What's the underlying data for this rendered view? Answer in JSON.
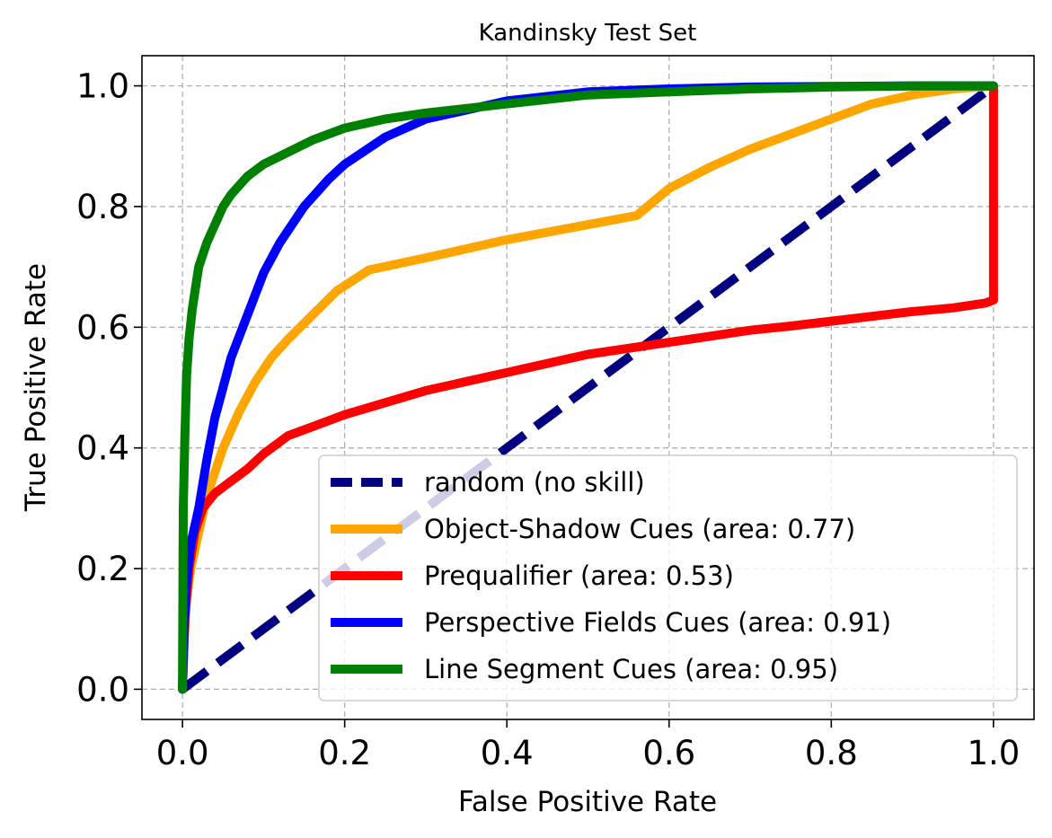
{
  "chart_data": {
    "type": "line",
    "title": "Kandinsky Test Set",
    "xlabel": "False Positive Rate",
    "ylabel": "True Positive Rate",
    "xlim": [
      -0.05,
      1.05
    ],
    "ylim": [
      -0.05,
      1.05
    ],
    "xticks": [
      0.0,
      0.2,
      0.4,
      0.6,
      0.8,
      1.0
    ],
    "yticks": [
      0.0,
      0.2,
      0.4,
      0.6,
      0.8,
      1.0
    ],
    "xtick_labels": [
      "0.0",
      "0.2",
      "0.4",
      "0.6",
      "0.8",
      "1.0"
    ],
    "ytick_labels": [
      "0.0",
      "0.2",
      "0.4",
      "0.6",
      "0.8",
      "1.0"
    ],
    "grid": true,
    "legend_position": "lower-right",
    "series": [
      {
        "name": "random (no skill)",
        "color": "#000080",
        "style": "dashed",
        "x": [
          0,
          1
        ],
        "y": [
          0,
          1
        ]
      },
      {
        "name": "Object-Shadow Cues (area: 0.77)",
        "color": "#FFA500",
        "style": "solid",
        "x": [
          0,
          0.002,
          0.005,
          0.01,
          0.02,
          0.03,
          0.04,
          0.05,
          0.07,
          0.09,
          0.11,
          0.13,
          0.16,
          0.19,
          0.23,
          0.3,
          0.4,
          0.5,
          0.56,
          0.6,
          0.65,
          0.7,
          0.75,
          0.8,
          0.85,
          0.9,
          0.95,
          1.0
        ],
        "y": [
          0,
          0.08,
          0.15,
          0.2,
          0.26,
          0.32,
          0.36,
          0.4,
          0.46,
          0.51,
          0.55,
          0.58,
          0.62,
          0.66,
          0.695,
          0.715,
          0.745,
          0.77,
          0.785,
          0.83,
          0.865,
          0.895,
          0.92,
          0.945,
          0.97,
          0.985,
          0.995,
          1.0
        ]
      },
      {
        "name": "Prequalifier (area: 0.53)",
        "color": "#FF0000",
        "style": "solid",
        "x": [
          0,
          0.003,
          0.008,
          0.015,
          0.025,
          0.04,
          0.06,
          0.08,
          0.1,
          0.13,
          0.16,
          0.2,
          0.25,
          0.3,
          0.35,
          0.4,
          0.45,
          0.5,
          0.55,
          0.6,
          0.65,
          0.7,
          0.75,
          0.8,
          0.85,
          0.9,
          0.95,
          0.99,
          1.0,
          1.0
        ],
        "y": [
          0,
          0.12,
          0.2,
          0.26,
          0.3,
          0.325,
          0.345,
          0.365,
          0.39,
          0.42,
          0.435,
          0.455,
          0.475,
          0.495,
          0.51,
          0.525,
          0.54,
          0.555,
          0.565,
          0.575,
          0.585,
          0.595,
          0.602,
          0.61,
          0.618,
          0.626,
          0.632,
          0.64,
          0.645,
          1.0
        ]
      },
      {
        "name": "Perspective Fields Cues (area: 0.91)",
        "color": "#0000FF",
        "style": "solid",
        "x": [
          0,
          0.002,
          0.005,
          0.01,
          0.02,
          0.03,
          0.04,
          0.05,
          0.06,
          0.08,
          0.1,
          0.12,
          0.15,
          0.18,
          0.2,
          0.25,
          0.3,
          0.35,
          0.4,
          0.5,
          0.6,
          0.7,
          0.8,
          0.9,
          1.0
        ],
        "y": [
          0,
          0.1,
          0.18,
          0.24,
          0.3,
          0.38,
          0.45,
          0.5,
          0.55,
          0.62,
          0.69,
          0.74,
          0.8,
          0.845,
          0.87,
          0.915,
          0.945,
          0.96,
          0.975,
          0.99,
          0.995,
          0.998,
          0.999,
          1.0,
          1.0
        ]
      },
      {
        "name": "Line Segment Cues (area: 0.95)",
        "color": "#008000",
        "style": "solid",
        "x": [
          0,
          0.001,
          0.003,
          0.005,
          0.008,
          0.012,
          0.02,
          0.03,
          0.04,
          0.05,
          0.06,
          0.08,
          0.1,
          0.13,
          0.16,
          0.2,
          0.25,
          0.3,
          0.4,
          0.5,
          0.6,
          0.7,
          0.8,
          0.9,
          1.0
        ],
        "y": [
          0,
          0.3,
          0.42,
          0.52,
          0.58,
          0.63,
          0.7,
          0.74,
          0.77,
          0.8,
          0.82,
          0.85,
          0.87,
          0.89,
          0.91,
          0.93,
          0.945,
          0.955,
          0.97,
          0.985,
          0.99,
          0.995,
          0.998,
          1.0,
          1.0
        ]
      }
    ]
  }
}
